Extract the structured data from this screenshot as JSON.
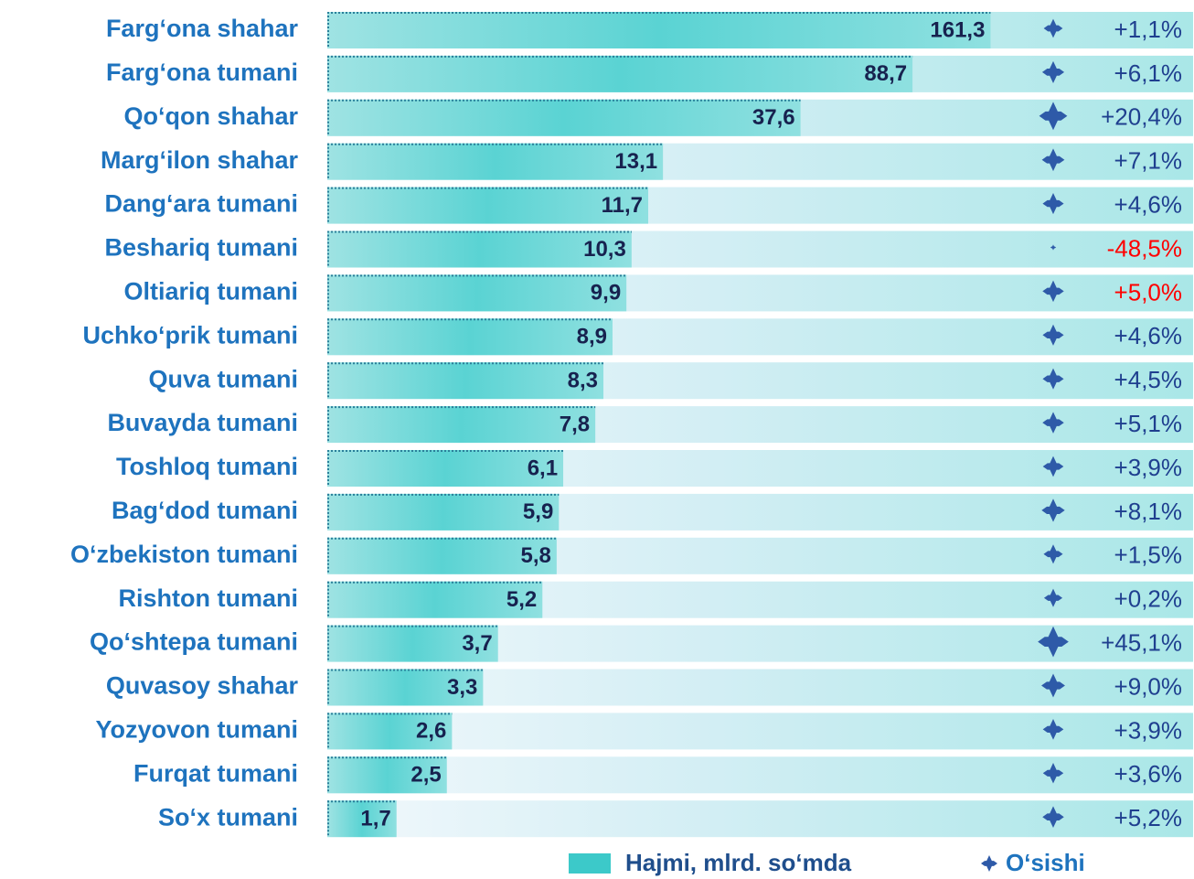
{
  "chart_data": {
    "type": "bar",
    "orientation": "horizontal",
    "log_scale": true,
    "xlim": [
      1,
      300
    ],
    "categories": [
      "Farg‘ona shahar",
      "Farg‘ona tumani",
      "Qo‘qon shahar",
      "Marg‘ilon shahar",
      "Dang‘ara tumani",
      "Beshariq tumani",
      "Oltiariq tumani",
      "Uchko‘prik tumani",
      "Quva tumani",
      "Buvayda tumani",
      "Toshloq tumani",
      "Bag‘dod tumani",
      "O‘zbekiston tumani",
      "Rishton tumani",
      "Qo‘shtepa tumani",
      "Quvasoy shahar",
      "Yozyovon tumani",
      "Furqat tumani",
      "So‘x tumani"
    ],
    "series": [
      {
        "name": "Hajmi, mlrd. so‘mda",
        "color": "#3cc9c9",
        "values": [
          161.3,
          88.7,
          37.6,
          13.1,
          11.7,
          10.3,
          9.9,
          8.9,
          8.3,
          7.8,
          6.1,
          5.9,
          5.8,
          5.2,
          3.7,
          3.3,
          2.6,
          2.5,
          1.7
        ],
        "value_labels": [
          "161,3",
          "88,7",
          "37,6",
          "13,1",
          "11,7",
          "10,3",
          "9,9",
          "8,9",
          "8,3",
          "7,8",
          "6,1",
          "5,9",
          "5,8",
          "5,2",
          "3,7",
          "3,3",
          "2,6",
          "2,5",
          "1,7"
        ]
      },
      {
        "name": "O‘sishi",
        "color": "#2e5aa8",
        "values": [
          1.1,
          6.1,
          20.4,
          7.1,
          4.6,
          -48.5,
          5.0,
          4.6,
          4.5,
          5.1,
          3.9,
          8.1,
          1.5,
          0.2,
          45.1,
          9.0,
          3.9,
          3.6,
          5.2
        ],
        "value_labels": [
          "+1,1%",
          "+6,1%",
          "+20,4%",
          "+7,1%",
          "+4,6%",
          "-48,5%",
          "+5,0%",
          "+4,6%",
          "+4,5%",
          "+5,1%",
          "+3,9%",
          "+8,1%",
          "+1,5%",
          "+0,2%",
          "+45,1%",
          "+9,0%",
          "+3,9%",
          "+3,6%",
          "+5,2%"
        ],
        "label_colors": [
          "#1f3f8f",
          "#1f3f8f",
          "#1f3f8f",
          "#1f3f8f",
          "#1f3f8f",
          "#ff0000",
          "#ff0000",
          "#1f3f8f",
          "#1f3f8f",
          "#1f3f8f",
          "#1f3f8f",
          "#1f3f8f",
          "#1f3f8f",
          "#1f3f8f",
          "#1f3f8f",
          "#1f3f8f",
          "#1f3f8f",
          "#1f3f8f",
          "#1f3f8f"
        ]
      }
    ]
  }
}
